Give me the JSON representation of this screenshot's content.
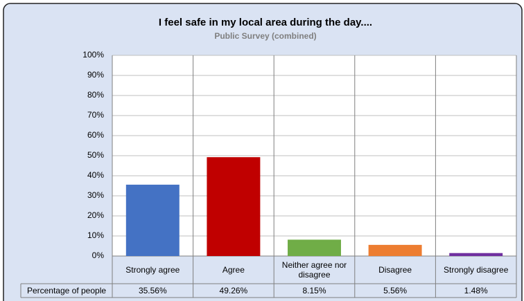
{
  "chart_data": {
    "type": "bar",
    "title": "I feel safe in my local area during the day....",
    "subtitle": "Public Survey (combined)",
    "categories": [
      "Strongly agree",
      "Agree",
      "Neither agree nor disagree",
      "Disagree",
      "Strongly disagree"
    ],
    "series": [
      {
        "name": "Percentage of people",
        "values": [
          35.56,
          49.26,
          8.15,
          5.56,
          1.48
        ],
        "value_labels": [
          "35.56%",
          "49.26%",
          "8.15%",
          "5.56%",
          "1.48%"
        ],
        "colors": [
          "#4472c4",
          "#c00000",
          "#70ad47",
          "#ed7d31",
          "#7030a0"
        ]
      }
    ],
    "ylim": [
      0,
      100
    ],
    "yticks": [
      {
        "value": 0,
        "label": "0%"
      },
      {
        "value": 10,
        "label": "10%"
      },
      {
        "value": 20,
        "label": "20%"
      },
      {
        "value": 30,
        "label": "30%"
      },
      {
        "value": 40,
        "label": "40%"
      },
      {
        "value": 50,
        "label": "50%"
      },
      {
        "value": 60,
        "label": "60%"
      },
      {
        "value": 70,
        "label": "70%"
      },
      {
        "value": 80,
        "label": "80%"
      },
      {
        "value": 90,
        "label": "90%"
      },
      {
        "value": 100,
        "label": "100%"
      }
    ],
    "grid": true
  }
}
